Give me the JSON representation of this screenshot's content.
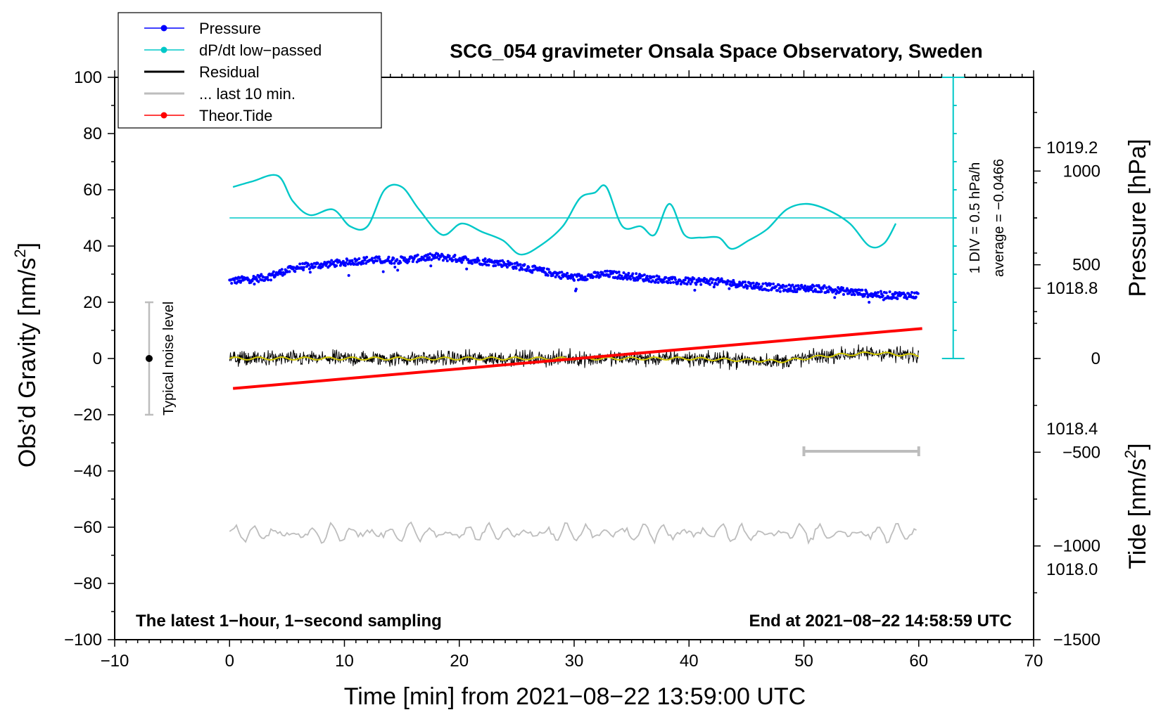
{
  "chart_data": {
    "type": "line",
    "title": "SCG_054 gravimeter Onsala Space Observatory, Sweden",
    "xlabel": "Time [min] from 2021−08−22 13:59:00 UTC",
    "ylabel_left": "Obs’d Gravity [nm/s",
    "ylabel_left_sup": "2",
    "ylabel_left_end": "]",
    "ylabel_right_pressure": "Pressure [hPa]",
    "ylabel_right_tide": "Tide [nm/s",
    "ylabel_right_tide_sup": "2",
    "ylabel_right_tide_end": "]",
    "xlim": [
      -10,
      70
    ],
    "ylim_left": [
      -100,
      100
    ],
    "x_ticks": [
      -10,
      0,
      10,
      20,
      30,
      40,
      50,
      60,
      70
    ],
    "x_tick_labels": [
      "−10",
      "0",
      "10",
      "20",
      "30",
      "40",
      "50",
      "60",
      "70"
    ],
    "y_ticks": [
      100,
      80,
      60,
      40,
      20,
      0,
      -20,
      -40,
      -60,
      -80,
      -100
    ],
    "y_tick_labels": [
      "100",
      "80",
      "60",
      "40",
      "20",
      "0",
      "−20",
      "−40",
      "−60",
      "−80",
      "−100"
    ],
    "pressure_axis": {
      "range": [
        1017.8,
        1019.4
      ],
      "ticks": [
        1018.0,
        1018.4,
        1018.8,
        1019.2
      ],
      "tick_labels": [
        "1018.0",
        "1018.4",
        "1018.8",
        "1019.2"
      ]
    },
    "tide_axis": {
      "range": [
        -1500,
        1500
      ],
      "ticks": [
        1000,
        500,
        0,
        -500,
        -1000,
        -1500
      ],
      "tick_labels": [
        "1000",
        "500",
        "0",
        "−500",
        "−1000",
        "−1500"
      ]
    },
    "annotations": {
      "bottom_left": "The latest 1−hour, 1−second sampling",
      "bottom_right": "End at 2021−08−22 14:58:59 UTC",
      "noise": "Typical noise level",
      "dpdt_div": "1 DIV = 0.5 hPa/h",
      "dpdt_avg": "average = −0.0466"
    },
    "noise_bar": {
      "x": -7,
      "center": 0,
      "low": -20,
      "high": 20
    },
    "last10_bar": {
      "x_start": 50,
      "x_end": 60,
      "y": -33
    },
    "dpdt_zero_level": 50,
    "legend": [
      {
        "label": "Pressure",
        "style": "line-dot",
        "color": "#0000ff"
      },
      {
        "label": "dP/dt low−passed",
        "style": "line-dot",
        "color": "#00c8c8"
      },
      {
        "label": "Residual",
        "style": "line",
        "color": "#000000"
      },
      {
        "label": "... last 10 min.",
        "style": "line",
        "color": "#bdbdbd"
      },
      {
        "label": "Theor.Tide",
        "style": "line-dot",
        "color": "#ff0000"
      }
    ],
    "series": [
      {
        "name": "Pressure",
        "unit": "hPa",
        "color": "#0000ff",
        "x": [
          0,
          3,
          6,
          9,
          12,
          15,
          18,
          21,
          24,
          27,
          30,
          33,
          36,
          39,
          42,
          45,
          48,
          51,
          54,
          57,
          60
        ],
        "values": [
          1018.82,
          1018.83,
          1018.86,
          1018.87,
          1018.88,
          1018.88,
          1018.89,
          1018.88,
          1018.87,
          1018.85,
          1018.83,
          1018.84,
          1018.83,
          1018.82,
          1018.82,
          1018.81,
          1018.8,
          1018.8,
          1018.79,
          1018.78,
          1018.78
        ]
      },
      {
        "name": "dP/dt low-passed",
        "unit": "nm/s2",
        "color": "#00c8c8",
        "x": [
          0.3,
          2,
          4.2,
          5.5,
          7,
          9,
          10.5,
          12,
          13.5,
          15,
          16.5,
          18.5,
          20.2,
          22,
          23.8,
          25.3,
          27,
          29,
          30.5,
          31.8,
          32.8,
          34.2,
          35.8,
          37,
          38.3,
          39.6,
          41,
          42.6,
          43.7,
          45.2,
          46.8,
          48.5,
          50.2,
          52,
          54,
          55.7,
          57,
          58
        ],
        "values": [
          61,
          63,
          65,
          56,
          51,
          53,
          47,
          47,
          60,
          61,
          53,
          44,
          48,
          45,
          42,
          37,
          40,
          47,
          57,
          59,
          61,
          47,
          47,
          44,
          55,
          44,
          43,
          43,
          39,
          42,
          46,
          53,
          55,
          53,
          48,
          40,
          41,
          48
        ]
      },
      {
        "name": "Residual",
        "unit": "nm/s2",
        "color": "#000000",
        "x": [
          0,
          10,
          20,
          30,
          40,
          48,
          52,
          56,
          60
        ],
        "values": [
          0,
          0,
          0,
          0,
          0,
          -1,
          1,
          2,
          1
        ],
        "noise_amplitude": 3
      },
      {
        "name": "Residual smoothed",
        "unit": "nm/s2",
        "color": "#d2c800",
        "x": [
          0,
          10,
          20,
          30,
          40,
          48,
          52,
          56,
          60
        ],
        "values": [
          0,
          0,
          0,
          0,
          0,
          -1,
          1,
          2,
          1
        ]
      },
      {
        "name": "... last 10 min.",
        "unit": "nm/s2",
        "color": "#bdbdbd",
        "x": [
          0,
          60
        ],
        "values": [
          -62,
          -62
        ],
        "wiggle_amplitude": 3
      },
      {
        "name": "Theor.Tide",
        "unit": "nm/s2",
        "color": "#ff0000",
        "x": [
          0.3,
          60.3
        ],
        "values": [
          -160,
          160
        ]
      }
    ]
  }
}
